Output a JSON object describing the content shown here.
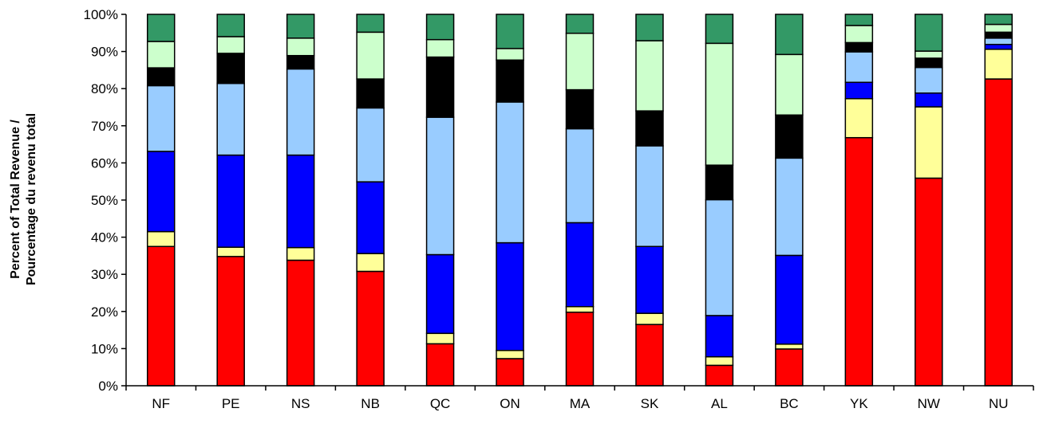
{
  "chart_data": {
    "type": "bar",
    "stacked": true,
    "title": "",
    "xlabel": "",
    "ylabel_line1": "Percent of Total Revenue /",
    "ylabel_line2": "Pourcentage du revenu total",
    "ylim": [
      0,
      100
    ],
    "y_ticks": [
      "0%",
      "10%",
      "20%",
      "30%",
      "40%",
      "50%",
      "60%",
      "70%",
      "80%",
      "90%",
      "100%"
    ],
    "grid": false,
    "legend": "none",
    "categories": [
      "NF",
      "PE",
      "NS",
      "NB",
      "QC",
      "ON",
      "MA",
      "SK",
      "AL",
      "BC",
      "YK",
      "NW",
      "NU"
    ],
    "series": [
      {
        "color": "#ff0000",
        "values": [
          37.5,
          34.8,
          33.8,
          30.8,
          11.3,
          7.3,
          19.8,
          16.5,
          5.5,
          9.9,
          66.8,
          55.9,
          82.6
        ]
      },
      {
        "color": "#ffff99",
        "values": [
          4.0,
          2.5,
          3.4,
          4.8,
          2.8,
          2.2,
          1.5,
          3.0,
          2.3,
          1.3,
          10.5,
          19.2,
          8.0
        ]
      },
      {
        "color": "#0000ff",
        "values": [
          21.6,
          24.8,
          24.9,
          19.3,
          21.2,
          29.0,
          22.6,
          18.0,
          11.1,
          23.9,
          4.4,
          3.7,
          1.3
        ]
      },
      {
        "color": "#99ccff",
        "values": [
          17.7,
          19.3,
          23.2,
          19.9,
          37.0,
          37.9,
          25.3,
          27.1,
          31.2,
          26.2,
          8.2,
          6.9,
          1.7
        ]
      },
      {
        "color": "#000000",
        "values": [
          4.8,
          8.1,
          3.6,
          7.8,
          16.2,
          11.3,
          10.5,
          9.4,
          9.3,
          11.6,
          2.5,
          2.5,
          1.6
        ]
      },
      {
        "color": "#ccffcc",
        "values": [
          7.1,
          4.5,
          4.7,
          12.6,
          4.7,
          3.1,
          15.2,
          18.9,
          32.8,
          16.3,
          4.6,
          1.9,
          2.1
        ]
      },
      {
        "color": "#339966",
        "values": [
          7.3,
          6.0,
          6.4,
          4.8,
          6.8,
          9.2,
          5.1,
          7.1,
          7.8,
          10.8,
          3.0,
          9.9,
          2.7
        ]
      }
    ]
  }
}
